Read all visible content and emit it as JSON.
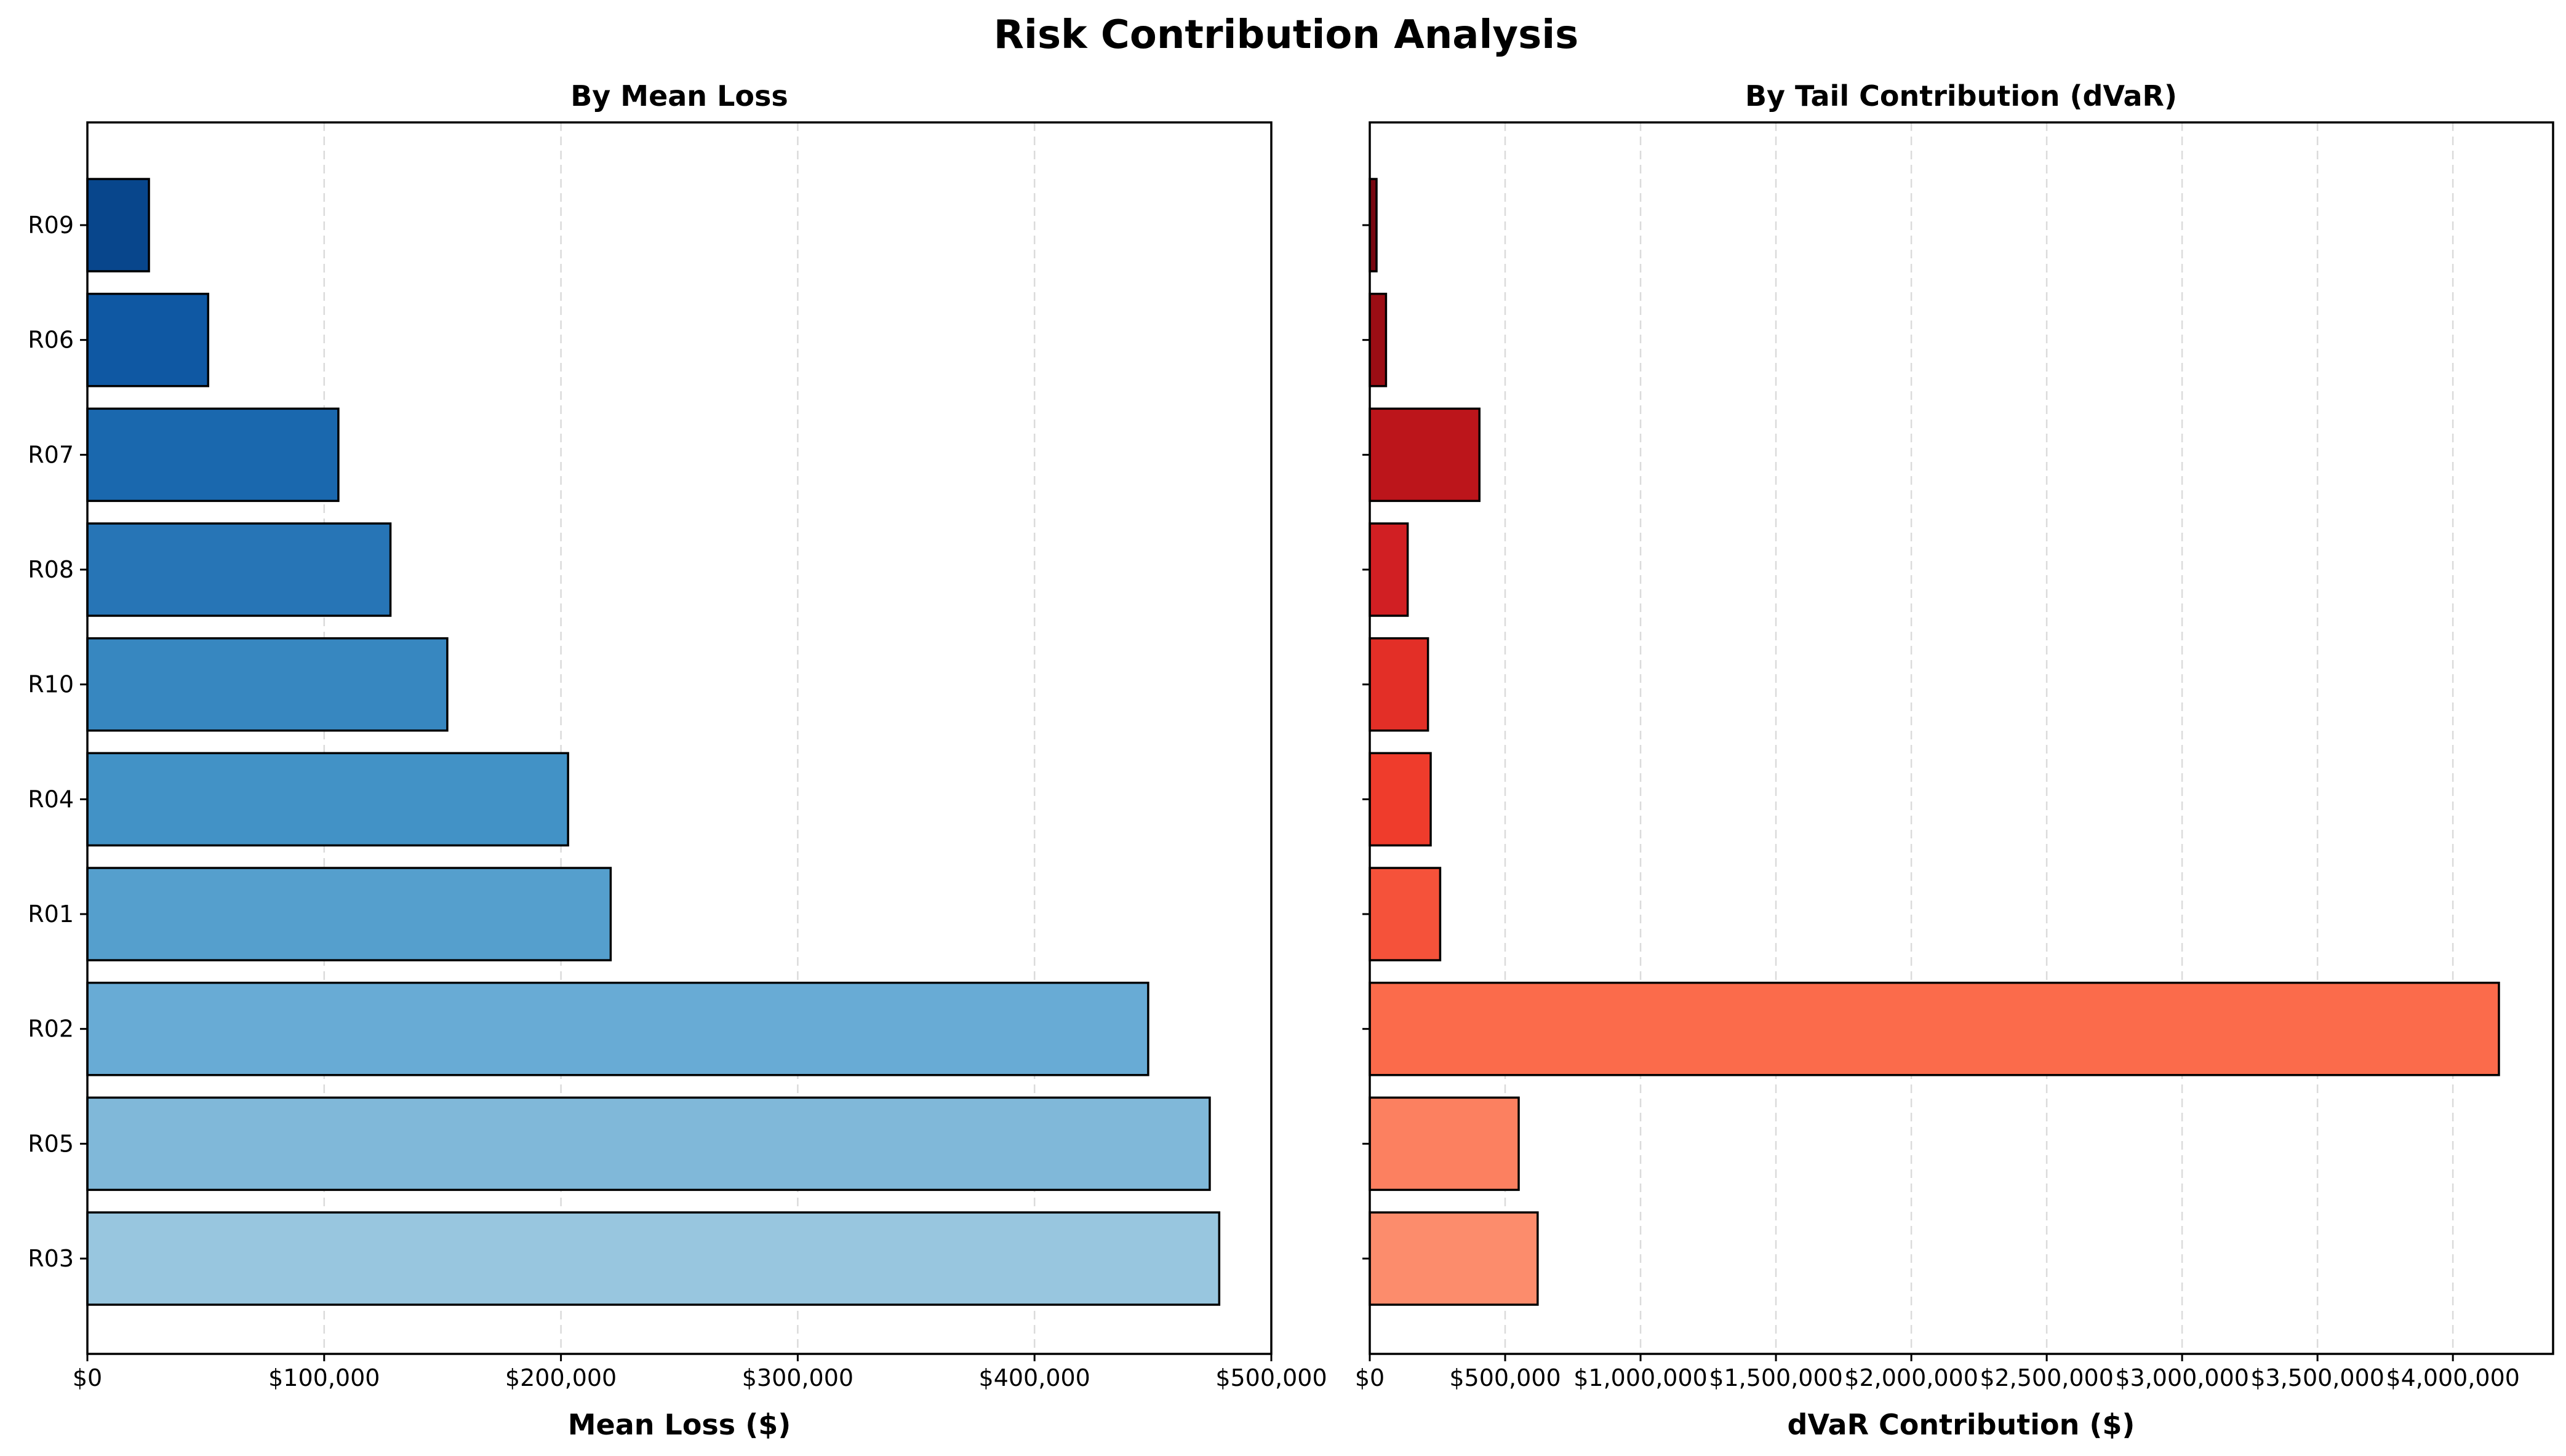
{
  "title": "Risk Contribution Analysis",
  "chart_data": [
    {
      "type": "bar",
      "orientation": "horizontal",
      "title": "By Mean Loss",
      "xlabel": "Mean Loss ($)",
      "ylabel": "",
      "categories": [
        "R09",
        "R06",
        "R07",
        "R08",
        "R10",
        "R04",
        "R01",
        "R02",
        "R05",
        "R03"
      ],
      "values": [
        26000,
        51000,
        106000,
        128000,
        152000,
        203000,
        221000,
        448000,
        474000,
        478000
      ],
      "xlim": [
        0,
        500000
      ],
      "xticks": [
        0,
        100000,
        200000,
        300000,
        400000,
        500000
      ],
      "xtick_labels": [
        "$0",
        "$100,000",
        "$200,000",
        "$300,000",
        "$400,000",
        "$500,000"
      ],
      "grid": "vertical dashed",
      "colors": [
        "#08468c",
        "#0f58a3",
        "#1a68ae",
        "#2775b6",
        "#3787c0",
        "#4292c6",
        "#559fcd",
        "#68abd5",
        "#80b8d9",
        "#98c6df"
      ]
    },
    {
      "type": "bar",
      "orientation": "horizontal",
      "title": "By Tail Contribution (dVaR)",
      "xlabel": "dVaR Contribution ($)",
      "ylabel": "",
      "categories": [
        "R09",
        "R06",
        "R07",
        "R08",
        "R10",
        "R04",
        "R01",
        "R02",
        "R05",
        "R03"
      ],
      "values": [
        25000,
        60000,
        405000,
        140000,
        215000,
        225000,
        260000,
        4170000,
        550000,
        620000
      ],
      "xlim": [
        0,
        4370000
      ],
      "xticks": [
        0,
        500000,
        1000000,
        1500000,
        2000000,
        2500000,
        3000000,
        3500000,
        4000000
      ],
      "xtick_labels": [
        "$0",
        "$500,000",
        "$1,000,000",
        "$1,500,000",
        "$2,000,000",
        "$2,500,000",
        "$3,000,000",
        "$3,500,000",
        "$4,000,000"
      ],
      "grid": "vertical dashed",
      "colors": [
        "#78060f",
        "#9b0d14",
        "#bc151b",
        "#d11f23",
        "#e32f27",
        "#ef3c2c",
        "#f5523a",
        "#fb6b4b",
        "#fc8060",
        "#fc8c6c"
      ]
    }
  ]
}
